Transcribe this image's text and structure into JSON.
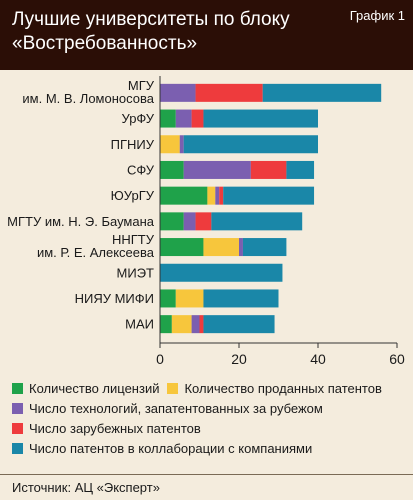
{
  "header": {
    "title": "Лучшие университеты по блоку «Востребованность»",
    "badge": "График 1"
  },
  "source": "Источник: АЦ «Эксперт»",
  "colors": {
    "header_bg": "#2b0e06",
    "page_bg": "#f4ecdd"
  },
  "chart_data": {
    "type": "bar",
    "orientation": "horizontal",
    "stacked": true,
    "categories": [
      [
        "МГУ",
        "им. М. В. Ломоносова"
      ],
      [
        "УрФУ"
      ],
      [
        "ПГНИУ"
      ],
      [
        "СФУ"
      ],
      [
        "ЮУрГУ"
      ],
      [
        "МГТУ им. Н. Э. Баумана"
      ],
      [
        "ННГТУ",
        "им. Р. Е. Алексеева"
      ],
      [
        "МИЭТ"
      ],
      [
        "НИЯУ МИФИ"
      ],
      [
        "МАИ"
      ]
    ],
    "series": [
      {
        "name": "Количество лицензий",
        "color": "#1fa24a",
        "values": [
          0,
          4,
          0,
          6,
          12,
          6,
          11,
          0,
          4,
          3
        ]
      },
      {
        "name": "Количество проданных патентов",
        "color": "#f7c63c",
        "values": [
          0,
          0,
          5,
          0,
          2,
          0,
          9,
          0,
          7,
          5
        ]
      },
      {
        "name": "Число технологий, запатентованных за рубежом",
        "color": "#7b5fb0",
        "values": [
          9,
          4,
          1,
          17,
          1,
          3,
          1,
          0,
          0,
          2
        ]
      },
      {
        "name": "Число зарубежных патентов",
        "color": "#ee3b3d",
        "values": [
          17,
          3,
          0,
          9,
          1,
          4,
          0,
          0,
          0,
          1
        ]
      },
      {
        "name": "Число патентов в коллаборации с компаниями",
        "color": "#1a87a8",
        "values": [
          30,
          29,
          34,
          7,
          23,
          23,
          11,
          31,
          19,
          18
        ]
      }
    ],
    "xlim": [
      0,
      60
    ],
    "xticks": [
      0,
      20,
      40,
      60
    ],
    "grid": false,
    "legend_placement": "bottom"
  }
}
